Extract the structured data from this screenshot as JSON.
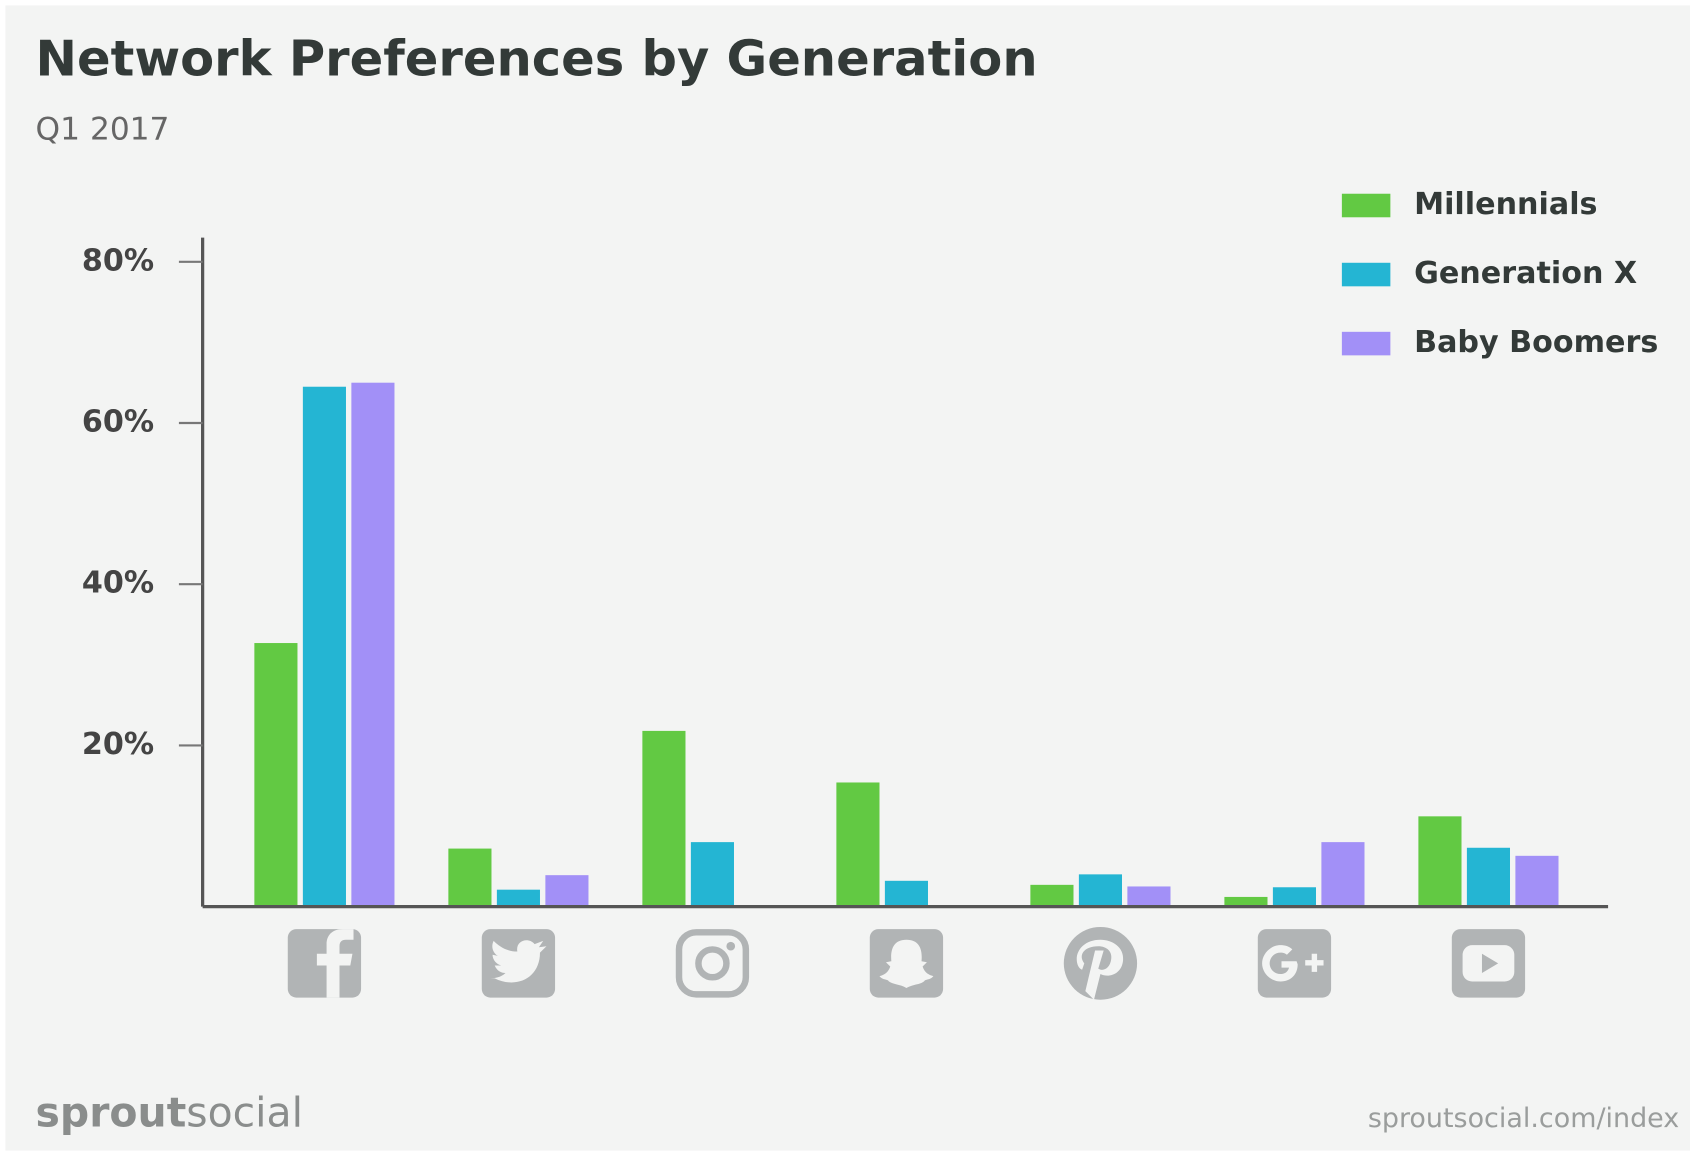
{
  "chart_data": {
    "type": "bar",
    "title": "Network Preferences by Generation",
    "subtitle": "Q1 2017",
    "categories": [
      null,
      null,
      null,
      null,
      null,
      null,
      null
    ],
    "series": [
      {
        "name": "Millennials",
        "color": "#62c943",
        "values": [
          32.7,
          7.2,
          21.8,
          15.4,
          2.7,
          1.2,
          11.2
        ]
      },
      {
        "name": "Generation X",
        "color": "#24b5d3",
        "values": [
          64.5,
          2.1,
          8,
          3.2,
          4,
          2.4,
          7.3
        ]
      },
      {
        "name": "Baby Boomers",
        "color": "#a290f7",
        "values": [
          65,
          3.9,
          0,
          0,
          2.5,
          8,
          6.3
        ]
      }
    ],
    "ylim": [
      0,
      83
    ],
    "yticks": [
      {
        "value": 20,
        "label": "20%"
      },
      {
        "value": 40,
        "label": "40%"
      },
      {
        "value": 60,
        "label": "60%"
      },
      {
        "value": 80,
        "label": "80%"
      }
    ],
    "legend": "top-right",
    "footer": {
      "logo": [
        "sprout",
        "social"
      ],
      "url": "sproutsocial.com/index"
    }
  }
}
